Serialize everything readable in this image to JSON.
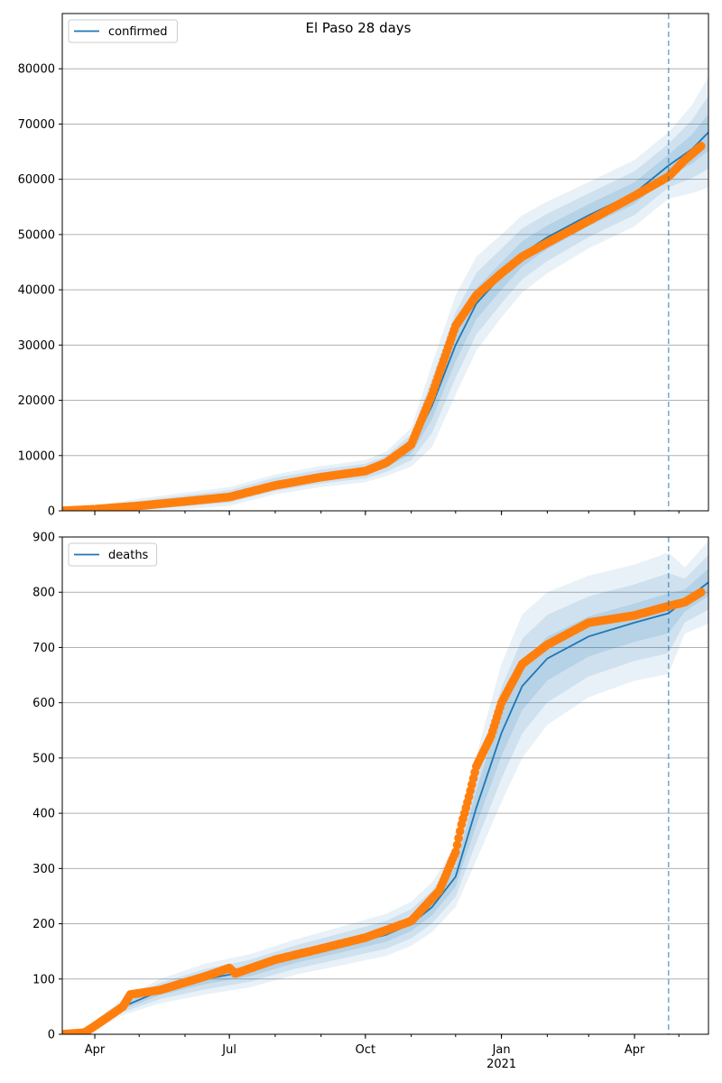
{
  "title": "El Paso 28 days",
  "colors": {
    "model_line": "#1f77b4",
    "observed": "#ff7f0e",
    "band": "#1f77b4",
    "grid": "#b0b0b0",
    "forecast_marker": "#1f77b4"
  },
  "x_axis": {
    "start": "2020-03-10",
    "end": "2021-05-21",
    "major_ticks": [
      {
        "date": "2020-04-01",
        "label": "Apr"
      },
      {
        "date": "2020-07-01",
        "label": "Jul"
      },
      {
        "date": "2020-10-01",
        "label": "Oct"
      },
      {
        "date": "2021-01-01",
        "label": "Jan"
      },
      {
        "date": "2021-04-01",
        "label": "Apr"
      }
    ],
    "year_label": {
      "date": "2021-01-01",
      "label": "2021"
    },
    "forecast_start": "2021-04-24"
  },
  "chart_data": [
    {
      "type": "line",
      "panel": "top",
      "legend": [
        "confirmed"
      ],
      "ylim": [
        0,
        90000
      ],
      "yticks": [
        0,
        10000,
        20000,
        30000,
        40000,
        50000,
        60000,
        70000,
        80000
      ],
      "grid": "horizontal",
      "legend_position": "top-left",
      "model": [
        {
          "x": "2020-03-10",
          "y": 0
        },
        {
          "x": "2020-04-01",
          "y": 400
        },
        {
          "x": "2020-05-01",
          "y": 1000
        },
        {
          "x": "2020-06-01",
          "y": 1800
        },
        {
          "x": "2020-07-01",
          "y": 2600
        },
        {
          "x": "2020-08-01",
          "y": 4800
        },
        {
          "x": "2020-09-01",
          "y": 6200
        },
        {
          "x": "2020-10-01",
          "y": 7200
        },
        {
          "x": "2020-10-15",
          "y": 8500
        },
        {
          "x": "2020-11-01",
          "y": 11500
        },
        {
          "x": "2020-11-15",
          "y": 19000
        },
        {
          "x": "2020-12-01",
          "y": 30000
        },
        {
          "x": "2020-12-15",
          "y": 37500
        },
        {
          "x": "2021-01-01",
          "y": 42500
        },
        {
          "x": "2021-01-15",
          "y": 46500
        },
        {
          "x": "2021-02-01",
          "y": 49500
        },
        {
          "x": "2021-03-01",
          "y": 53500
        },
        {
          "x": "2021-04-01",
          "y": 57500
        },
        {
          "x": "2021-04-24",
          "y": 62500
        },
        {
          "x": "2021-05-10",
          "y": 65500
        },
        {
          "x": "2021-05-21",
          "y": 68500
        }
      ],
      "band_width": [
        0,
        600,
        1200,
        1500,
        1700,
        1800,
        1900,
        2000,
        2200,
        3500,
        7500,
        9000,
        8500,
        7500,
        7000,
        6500,
        6000,
        6000,
        6000,
        8000,
        10000
      ],
      "observed": [
        {
          "x": "2020-03-10",
          "y": 0
        },
        {
          "x": "2020-04-01",
          "y": 300
        },
        {
          "x": "2020-05-01",
          "y": 900
        },
        {
          "x": "2020-06-01",
          "y": 1700
        },
        {
          "x": "2020-07-01",
          "y": 2500
        },
        {
          "x": "2020-08-01",
          "y": 4600
        },
        {
          "x": "2020-09-01",
          "y": 6100
        },
        {
          "x": "2020-10-01",
          "y": 7200
        },
        {
          "x": "2020-10-15",
          "y": 8700
        },
        {
          "x": "2020-11-01",
          "y": 12000
        },
        {
          "x": "2020-11-15",
          "y": 21000
        },
        {
          "x": "2020-12-01",
          "y": 33500
        },
        {
          "x": "2020-12-15",
          "y": 39000
        },
        {
          "x": "2021-01-01",
          "y": 43000
        },
        {
          "x": "2021-01-15",
          "y": 46000
        },
        {
          "x": "2021-02-01",
          "y": 48500
        },
        {
          "x": "2021-03-01",
          "y": 52500
        },
        {
          "x": "2021-04-01",
          "y": 57000
        },
        {
          "x": "2021-04-24",
          "y": 60500
        },
        {
          "x": "2021-05-05",
          "y": 63500
        },
        {
          "x": "2021-05-16",
          "y": 66000
        }
      ]
    },
    {
      "type": "line",
      "panel": "bottom",
      "legend": [
        "deaths"
      ],
      "ylim": [
        0,
        900
      ],
      "yticks": [
        0,
        100,
        200,
        300,
        400,
        500,
        600,
        700,
        800,
        900
      ],
      "grid": "horizontal",
      "legend_position": "top-left",
      "model": [
        {
          "x": "2020-03-10",
          "y": 0
        },
        {
          "x": "2020-03-25",
          "y": 2
        },
        {
          "x": "2020-04-01",
          "y": 15
        },
        {
          "x": "2020-04-20",
          "y": 50
        },
        {
          "x": "2020-05-15",
          "y": 78
        },
        {
          "x": "2020-06-15",
          "y": 100
        },
        {
          "x": "2020-07-15",
          "y": 115
        },
        {
          "x": "2020-08-15",
          "y": 140
        },
        {
          "x": "2020-09-15",
          "y": 160
        },
        {
          "x": "2020-10-15",
          "y": 180
        },
        {
          "x": "2020-11-01",
          "y": 200
        },
        {
          "x": "2020-11-15",
          "y": 230
        },
        {
          "x": "2020-12-01",
          "y": 285
        },
        {
          "x": "2020-12-15",
          "y": 410
        },
        {
          "x": "2021-01-01",
          "y": 545
        },
        {
          "x": "2021-01-15",
          "y": 630
        },
        {
          "x": "2021-02-01",
          "y": 680
        },
        {
          "x": "2021-03-01",
          "y": 720
        },
        {
          "x": "2021-04-01",
          "y": 745
        },
        {
          "x": "2021-04-24",
          "y": 762
        },
        {
          "x": "2021-05-05",
          "y": 785
        },
        {
          "x": "2021-05-21",
          "y": 818
        }
      ],
      "band_width": [
        0,
        2,
        8,
        15,
        22,
        28,
        30,
        32,
        35,
        38,
        40,
        45,
        55,
        95,
        125,
        130,
        120,
        110,
        105,
        110,
        60,
        75
      ],
      "observed": [
        {
          "x": "2020-03-10",
          "y": 0
        },
        {
          "x": "2020-03-25",
          "y": 3
        },
        {
          "x": "2020-04-01",
          "y": 15
        },
        {
          "x": "2020-04-20",
          "y": 50
        },
        {
          "x": "2020-04-25",
          "y": 72
        },
        {
          "x": "2020-05-15",
          "y": 80
        },
        {
          "x": "2020-06-15",
          "y": 105
        },
        {
          "x": "2020-07-01",
          "y": 120
        },
        {
          "x": "2020-07-05",
          "y": 110
        },
        {
          "x": "2020-08-01",
          "y": 135
        },
        {
          "x": "2020-09-01",
          "y": 155
        },
        {
          "x": "2020-10-01",
          "y": 175
        },
        {
          "x": "2020-11-01",
          "y": 205
        },
        {
          "x": "2020-11-20",
          "y": 260
        },
        {
          "x": "2020-12-01",
          "y": 330
        },
        {
          "x": "2020-12-05",
          "y": 380
        },
        {
          "x": "2020-12-10",
          "y": 430
        },
        {
          "x": "2020-12-15",
          "y": 485
        },
        {
          "x": "2020-12-25",
          "y": 540
        },
        {
          "x": "2021-01-01",
          "y": 600
        },
        {
          "x": "2021-01-15",
          "y": 670
        },
        {
          "x": "2021-02-01",
          "y": 705
        },
        {
          "x": "2021-03-01",
          "y": 745
        },
        {
          "x": "2021-04-01",
          "y": 758
        },
        {
          "x": "2021-04-24",
          "y": 775
        },
        {
          "x": "2021-05-05",
          "y": 782
        },
        {
          "x": "2021-05-16",
          "y": 800
        }
      ]
    }
  ]
}
